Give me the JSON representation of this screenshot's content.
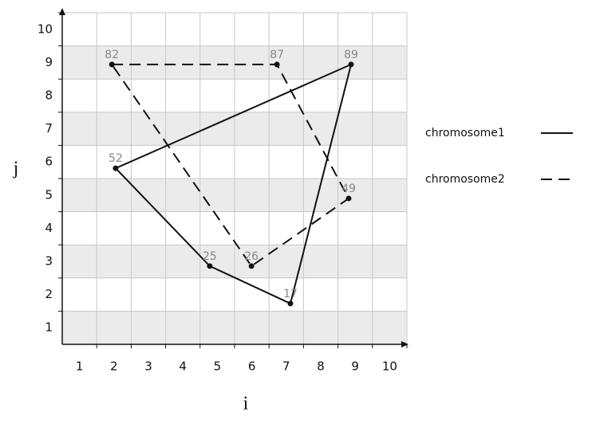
{
  "chart_data": {
    "type": "polygon",
    "xlabel": "i",
    "ylabel": "j",
    "xlim": [
      0,
      10
    ],
    "ylim": [
      0,
      10
    ],
    "xticks": [
      1,
      2,
      3,
      4,
      5,
      6,
      7,
      8,
      9,
      10
    ],
    "yticks": [
      1,
      2,
      3,
      4,
      5,
      6,
      7,
      8,
      9,
      10
    ],
    "grid": true,
    "closed": true,
    "series": [
      {
        "name": "chromosome1",
        "color": "#111111",
        "dash": false,
        "x": [
          8.38,
          1.55,
          4.28,
          6.62
        ],
        "values": [
          8.44,
          5.31,
          2.36,
          1.23
        ],
        "labels": [
          "89",
          "52",
          "25",
          "17"
        ]
      },
      {
        "name": "chromosome2",
        "color": "#111111",
        "dash": true,
        "x": [
          1.44,
          6.23,
          8.31,
          5.49
        ],
        "values": [
          8.44,
          8.44,
          4.4,
          2.36
        ],
        "labels": [
          "82",
          "87",
          "49",
          "26"
        ]
      }
    ]
  }
}
